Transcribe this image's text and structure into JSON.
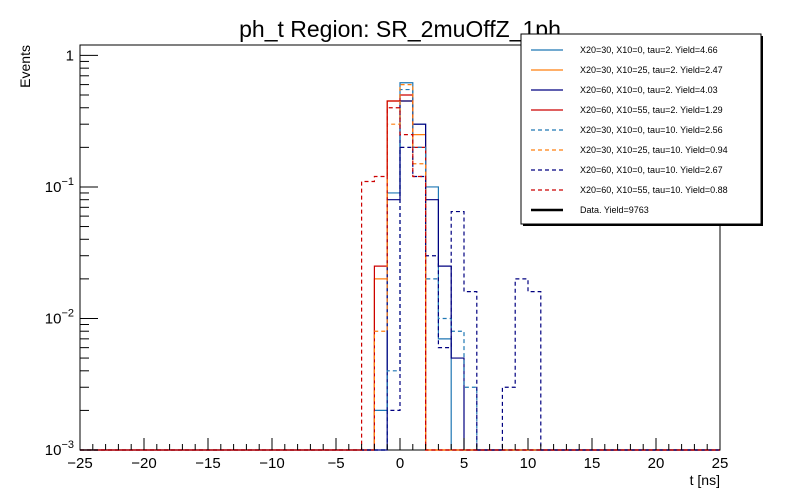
{
  "chart_data": {
    "type": "line",
    "title": "ph_t Region: SR_2muOffZ_1ph",
    "xlabel": "t [ns]",
    "ylabel": "Events",
    "xlim": [
      -25,
      25
    ],
    "ylim": [
      0.001,
      1.2
    ],
    "log_y": true,
    "grid": false,
    "legend_position": "top-right",
    "x_ticks": [
      -25,
      -20,
      -15,
      -10,
      -5,
      0,
      5,
      10,
      15,
      20,
      25
    ],
    "x_tick_labels": [
      "−25",
      "−20",
      "−15",
      "−10",
      "−5",
      "0",
      "5",
      "10",
      "15",
      "20",
      "25"
    ],
    "y_ticks": [
      0.001,
      0.01,
      0.1,
      1
    ],
    "y_tick_labels": [
      {
        "base": "10",
        "exp": "−3"
      },
      {
        "base": "10",
        "exp": "−2"
      },
      {
        "base": "10",
        "exp": "−1"
      },
      {
        "base": "1",
        "exp": ""
      }
    ],
    "bin_width": 1,
    "series": [
      {
        "name": "X20=30, X10=0, tau=2. Yield=4.66",
        "color": "#1f77b4",
        "dashed": false,
        "bins": [
          [
            -2,
            0.002
          ],
          [
            -1,
            0.09
          ],
          [
            0,
            0.62
          ],
          [
            1,
            0.3
          ],
          [
            2,
            0.1
          ],
          [
            3,
            0.007
          ],
          [
            4,
            0.001
          ]
        ]
      },
      {
        "name": "X20=30, X10=25, tau=2. Yield=2.47",
        "color": "#ff7f0e",
        "dashed": false,
        "bins": [
          [
            -2,
            0.02
          ],
          [
            -1,
            0.45
          ],
          [
            0,
            0.45
          ],
          [
            1,
            0.25
          ],
          [
            2,
            0.001
          ]
        ]
      },
      {
        "name": "X20=60, X10=0, tau=2. Yield=4.03",
        "color": "#000080",
        "dashed": false,
        "bins": [
          [
            -2,
            0.001
          ],
          [
            -1,
            0.08
          ],
          [
            0,
            0.45
          ],
          [
            1,
            0.3
          ],
          [
            2,
            0.08
          ],
          [
            3,
            0.025
          ],
          [
            4,
            0.005
          ],
          [
            5,
            0.001
          ]
        ]
      },
      {
        "name": "X20=60, X10=55, tau=2. Yield=1.29",
        "color": "#cc0000",
        "dashed": false,
        "bins": [
          [
            -2,
            0.025
          ],
          [
            -1,
            0.45
          ],
          [
            0,
            0.5
          ],
          [
            1,
            0.2
          ],
          [
            2,
            0.001
          ]
        ]
      },
      {
        "name": "X20=30, X10=0, tau=10. Yield=2.56",
        "color": "#1f77b4",
        "dashed": true,
        "bins": [
          [
            -1,
            0.004
          ],
          [
            0,
            0.55
          ],
          [
            1,
            0.2
          ],
          [
            2,
            0.02
          ],
          [
            3,
            0.01
          ],
          [
            4,
            0.008
          ],
          [
            5,
            0.003
          ],
          [
            6,
            0.001
          ]
        ]
      },
      {
        "name": "X20=30, X10=25, tau=10. Yield=0.94",
        "color": "#ff7f0e",
        "dashed": true,
        "bins": [
          [
            -2,
            0.008
          ],
          [
            -1,
            0.3
          ],
          [
            0,
            0.6
          ],
          [
            1,
            0.15
          ],
          [
            2,
            0.001
          ]
        ]
      },
      {
        "name": "X20=60, X10=0, tau=10. Yield=2.67",
        "color": "#000080",
        "dashed": true,
        "bins": [
          [
            -1,
            0.002
          ],
          [
            0,
            0.2
          ],
          [
            1,
            0.12
          ],
          [
            2,
            0.03
          ],
          [
            3,
            0.006
          ],
          [
            4,
            0.065
          ],
          [
            5,
            0.016
          ],
          [
            6,
            0.001
          ],
          [
            7,
            0.001
          ],
          [
            8,
            0.003
          ],
          [
            9,
            0.02
          ],
          [
            10,
            0.016
          ]
        ]
      },
      {
        "name": "X20=60, X10=55, tau=10. Yield=0.88",
        "color": "#cc0000",
        "dashed": true,
        "bins": [
          [
            -3,
            0.11
          ],
          [
            -2,
            0.12
          ],
          [
            -1,
            0.4
          ],
          [
            0,
            0.25
          ],
          [
            1,
            0.12
          ],
          [
            2,
            0.001
          ]
        ]
      },
      {
        "name": "Data. Yield=9763",
        "color": "#000000",
        "dashed": false,
        "thick": true,
        "bins": []
      }
    ]
  }
}
